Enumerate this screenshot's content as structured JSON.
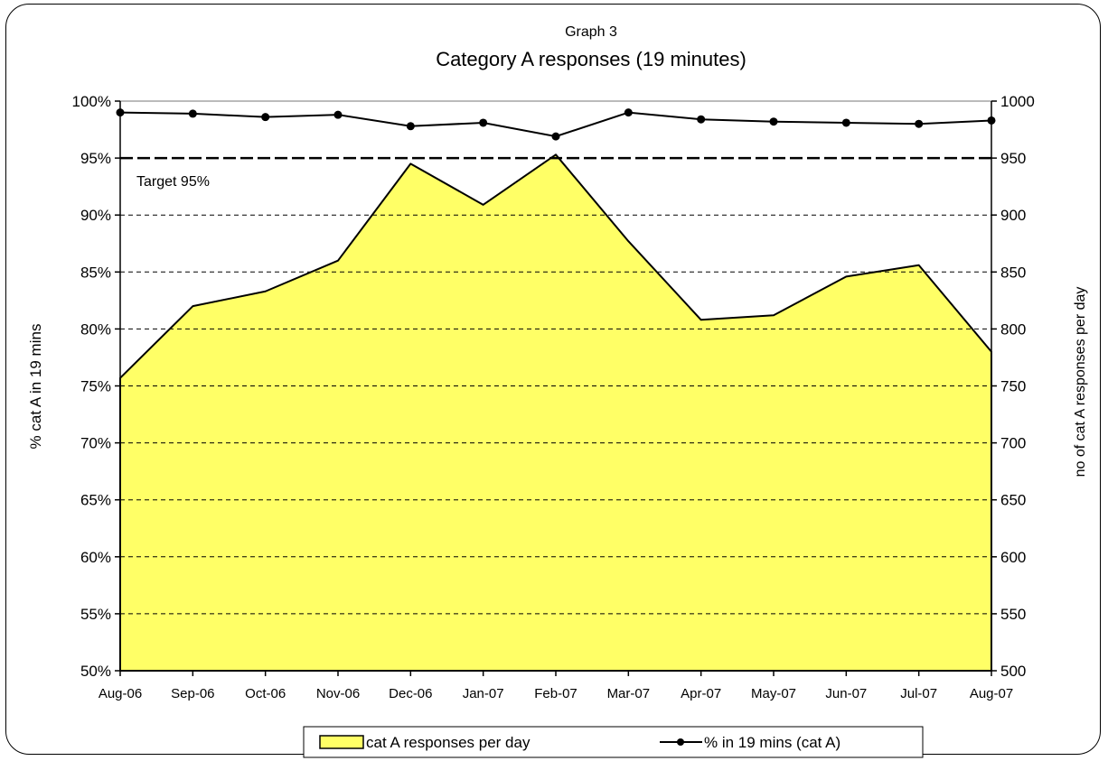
{
  "chart_data": {
    "type": "area+line",
    "title_line1": "Graph 3",
    "title_line2": "Category A responses (19 minutes)",
    "categories": [
      "Aug-06",
      "Sep-06",
      "Oct-06",
      "Nov-06",
      "Dec-06",
      "Jan-07",
      "Feb-07",
      "Mar-07",
      "Apr-07",
      "May-07",
      "Jun-07",
      "Jul-07",
      "Aug-07"
    ],
    "left_axis": {
      "label": "% cat A in 19 mins",
      "min": 50,
      "max": 100,
      "step": 5,
      "tick_labels": [
        "50%",
        "55%",
        "60%",
        "65%",
        "70%",
        "75%",
        "80%",
        "85%",
        "90%",
        "95%",
        "100%"
      ]
    },
    "right_axis": {
      "label": "no of cat A responses per day",
      "min": 500,
      "max": 1000,
      "step": 50,
      "tick_labels": [
        "500",
        "550",
        "600",
        "650",
        "700",
        "750",
        "800",
        "850",
        "900",
        "950",
        "1000"
      ]
    },
    "target": {
      "value": 95,
      "label": "Target 95%"
    },
    "series": [
      {
        "name": "cat A responses per day",
        "kind": "area",
        "axis": "right",
        "color": "#FFFF66",
        "values": [
          757,
          820,
          833,
          860,
          945,
          909,
          953,
          877,
          808,
          812,
          846,
          856,
          780
        ]
      },
      {
        "name": "% in 19 mins (cat A)",
        "kind": "line",
        "axis": "left",
        "color": "#000000",
        "values": [
          99.0,
          98.9,
          98.6,
          98.8,
          97.8,
          98.1,
          96.9,
          99.0,
          98.4,
          98.2,
          98.1,
          98.0,
          98.3
        ]
      }
    ],
    "gridlines": "dashed horizontal",
    "legend_position": "bottom"
  }
}
